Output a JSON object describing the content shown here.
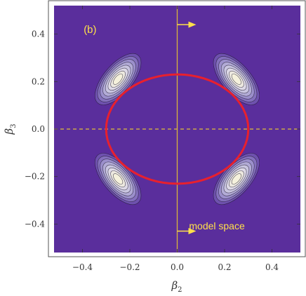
{
  "chart_data": {
    "type": "contour",
    "panel_label": "(b)",
    "xlabel": {
      "symbol": "β",
      "subscript": "2"
    },
    "ylabel": {
      "symbol": "β",
      "subscript": "3"
    },
    "xlim": [
      -0.52,
      0.52
    ],
    "ylim": [
      -0.52,
      0.52
    ],
    "x_ticks": [
      -0.4,
      -0.2,
      0.0,
      0.2,
      0.4
    ],
    "y_ticks": [
      -0.4,
      -0.2,
      0.0,
      0.2,
      0.4
    ],
    "x_tick_labels": [
      "−0.4",
      "−0.2",
      "0.0",
      "0.2",
      "0.4"
    ],
    "y_tick_labels": [
      "−0.4",
      "−0.2",
      "0.0",
      "0.2",
      "0.4"
    ],
    "contour_peaks": [
      {
        "x": -0.25,
        "y": 0.21
      },
      {
        "x": 0.25,
        "y": 0.21
      },
      {
        "x": -0.25,
        "y": -0.21
      },
      {
        "x": 0.25,
        "y": -0.21
      }
    ],
    "ellipse": {
      "center": [
        0.0,
        0.0
      ],
      "semi_axis_x": 0.3,
      "semi_axis_y": 0.23,
      "color": "#e8202e"
    },
    "vertical_line": {
      "x": 0.0,
      "color": "#d9b43c"
    },
    "horizontal_dashed_line": {
      "y": 0.0,
      "color": "#e0bf3a"
    },
    "arrows": [
      {
        "x_start": 0.0,
        "x_end": 0.08,
        "y": 0.44
      },
      {
        "x_start": 0.0,
        "x_end": 0.08,
        "y": -0.43
      }
    ],
    "annotation": {
      "text": "model space",
      "x": 0.05,
      "y": -0.485
    },
    "colors": {
      "background": "#5a2e9c",
      "contour_line": "#1f1a2e",
      "annotation_text": "#ffe04a",
      "levels": [
        "#5a2e9c",
        "#6e51ae",
        "#8470bd",
        "#9b8fcb",
        "#b2abd6",
        "#c9c5e0",
        "#ddd9e6",
        "#ece8df",
        "#f5f1dc"
      ]
    }
  }
}
